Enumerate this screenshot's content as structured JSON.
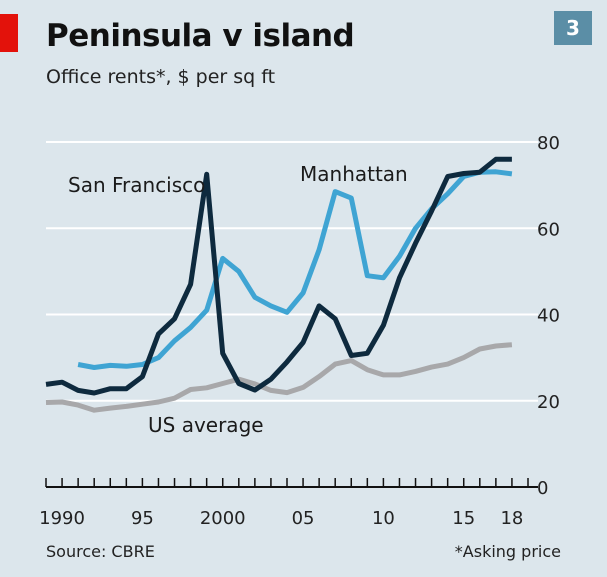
{
  "header": {
    "title": "Peninsula v island",
    "subtitle": "Office rents*, $ per sq ft",
    "chart_number": "3"
  },
  "footer": {
    "source": "Source: CBRE",
    "note": "*Asking price"
  },
  "chart_data": {
    "type": "line",
    "title": "Peninsula v island",
    "subtitle": "Office rents*, $ per sq ft",
    "xlabel": "",
    "ylabel": "",
    "xlim": [
      1989,
      2019
    ],
    "ylim": [
      0,
      80
    ],
    "y_ticks": [
      0,
      20,
      40,
      60,
      80
    ],
    "x_tick_labels": [
      {
        "x": 1990,
        "label": "1990"
      },
      {
        "x": 1995,
        "label": "95"
      },
      {
        "x": 2000,
        "label": "2000"
      },
      {
        "x": 2005,
        "label": "05"
      },
      {
        "x": 2010,
        "label": "10"
      },
      {
        "x": 2015,
        "label": "15"
      },
      {
        "x": 2018,
        "label": "18"
      }
    ],
    "grid": "horizontal",
    "series": [
      {
        "name": "US average",
        "color": "#a8a8aa",
        "x": [
          1989,
          1990,
          1991,
          1992,
          1993,
          1994,
          1995,
          1996,
          1997,
          1998,
          1999,
          2000,
          2001,
          2002,
          2003,
          2004,
          2005,
          2006,
          2007,
          2008,
          2009,
          2010,
          2011,
          2012,
          2013,
          2014,
          2015,
          2016,
          2017,
          2018
        ],
        "values": [
          19.6,
          19.7,
          19.0,
          17.8,
          18.3,
          18.7,
          19.2,
          19.7,
          20.6,
          22.6,
          23.0,
          24.0,
          25.0,
          23.9,
          22.4,
          21.9,
          23.1,
          25.6,
          28.5,
          29.3,
          27.2,
          26.0,
          26.0,
          26.8,
          27.8,
          28.5,
          30.0,
          32.0,
          32.7,
          33.0
        ]
      },
      {
        "name": "Manhattan",
        "color": "#3fa4d3",
        "x": [
          1991,
          1992,
          1993,
          1994,
          1995,
          1996,
          1997,
          1998,
          1999,
          2000,
          2001,
          2002,
          2003,
          2004,
          2005,
          2006,
          2007,
          2008,
          2009,
          2010,
          2011,
          2012,
          2013,
          2014,
          2015,
          2016,
          2017,
          2018
        ],
        "values": [
          28.4,
          27.7,
          28.2,
          28.0,
          28.4,
          30.0,
          33.9,
          37.0,
          41.0,
          53.0,
          50.0,
          44.0,
          42.0,
          40.5,
          45.0,
          55.0,
          68.5,
          67.0,
          49.0,
          48.5,
          53.5,
          60.0,
          64.5,
          68.0,
          72.0,
          73.0,
          73.1,
          72.6
        ]
      },
      {
        "name": "San Francisco",
        "color": "#0e2a3e",
        "x": [
          1989,
          1990,
          1991,
          1992,
          1993,
          1994,
          1995,
          1996,
          1997,
          1998,
          1999,
          2000,
          2001,
          2002,
          2003,
          2004,
          2005,
          2006,
          2007,
          2008,
          2009,
          2010,
          2011,
          2012,
          2013,
          2014,
          2015,
          2016,
          2017,
          2018
        ],
        "values": [
          23.8,
          24.3,
          22.4,
          21.8,
          22.8,
          22.8,
          25.6,
          35.5,
          39.0,
          47.0,
          72.5,
          31.0,
          24.0,
          22.5,
          25.0,
          29.0,
          33.5,
          42.0,
          39.0,
          30.5,
          31.0,
          37.5,
          48.5,
          56.5,
          64.0,
          72.0,
          72.7,
          73.0,
          76.0,
          76.0
        ]
      }
    ],
    "annotations": [
      {
        "label": "San Francisco",
        "series": "San Francisco"
      },
      {
        "label": "Manhattan",
        "series": "Manhattan"
      },
      {
        "label": "US average",
        "series": "US average"
      }
    ]
  }
}
